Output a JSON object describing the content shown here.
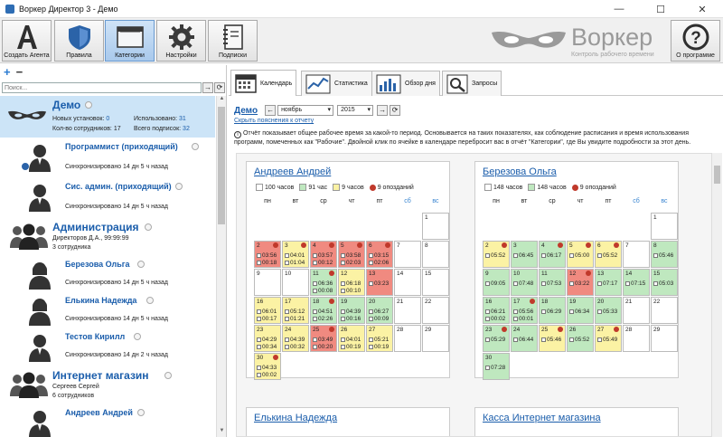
{
  "window": {
    "title": "Воркер Директор 3 - Демо",
    "min": "—",
    "max": "☐",
    "close": "✕"
  },
  "toolbar": {
    "buttons": [
      {
        "label": "Создать Агента",
        "icon": "letter-a-icon"
      },
      {
        "label": "Правила",
        "icon": "shield-icon"
      },
      {
        "label": "Категории",
        "icon": "folder-icon",
        "active": true
      },
      {
        "label": "Настройки",
        "icon": "gear-icon"
      },
      {
        "label": "Подписки",
        "icon": "notebook-icon"
      }
    ],
    "about_label": "О программе",
    "about_icon_glyph": "?"
  },
  "logo": {
    "brand": "Воркер",
    "subtitle": "Контроль рабочего времени"
  },
  "left": {
    "add": "+",
    "remove": "−",
    "search_placeholder": "Поиск...",
    "search_go": "→",
    "search_refresh": "⟳",
    "demo": {
      "name": "Демо",
      "installs_label": "Новых установок:",
      "installs": "0",
      "emp_label": "Кол-во сотрудников:",
      "emp": "17",
      "used_label": "Использовано:",
      "used": "31",
      "subs_label": "Всего подписок:",
      "subs": "32"
    },
    "users1": [
      {
        "name": "Программист (приходящий)",
        "sync": "Синхронизировано 14 дн 5 ч назад"
      },
      {
        "name": "Сис. админ. (приходящий)",
        "sync": "Синхронизировано 14 дн 5 ч назад"
      }
    ],
    "admin": {
      "name": "Администрация",
      "line1": "Директоров Д.А., 99:99:99",
      "line2": "3 сотрудника"
    },
    "users2": [
      {
        "name": "Березова Ольга",
        "sync": "Синхронизировано 14 дн 5 ч назад"
      },
      {
        "name": "Елькина Надежда",
        "sync": "Синхронизировано 14 дн 5 ч назад"
      },
      {
        "name": "Тестов Кирилл",
        "sync": "Синхронизировано 14 дн 2 ч назад"
      }
    ],
    "shop": {
      "name": "Интернет магазин",
      "line1": "Сергеев Сергей",
      "line2": "6 сотрудников"
    },
    "users3": [
      {
        "name": "Андреев Андрей"
      }
    ]
  },
  "tabs": [
    {
      "label": "Календарь",
      "icon": "calendar-icon"
    },
    {
      "label": "Статистика",
      "icon": "line-chart-icon"
    },
    {
      "label": "Обзор дня",
      "icon": "bar-chart-icon"
    },
    {
      "label": "Запросы",
      "icon": "magnifier-icon"
    }
  ],
  "controls": {
    "demo": "Демо",
    "prev": "←",
    "month": "ноябрь",
    "next": "→",
    "year": "2015",
    "refresh": "⟳"
  },
  "explain_link": "Скрыть пояснения к отчету",
  "note": "Отчёт показывает общее рабочее время за какой-то период. Основывается на таких показателях, как соблюдение расписания и время использования программ, помеченных как \"Рабочие\". Двойной клик по ячейке в календаре перебросит вас в отчёт \"Категории\", где Вы увидите подробности за этот день.",
  "note_icon": "info-icon",
  "weekdays": [
    "пн",
    "вт",
    "ср",
    "чт",
    "пт",
    "сб",
    "вс"
  ],
  "colors": {
    "red": "#f08a80",
    "yellow": "#fbf2a4",
    "green": "#bfe8bf",
    "white": "#ffffff",
    "link": "#1a5dab"
  },
  "cards": [
    {
      "name": "Андреев Андрей",
      "legend": [
        {
          "text": "100 часов",
          "color": "#ffffff"
        },
        {
          "text": "91 час",
          "color": "#bfe8bf"
        },
        {
          "text": "9 часов",
          "color": "#fbf2a4"
        },
        {
          "text": "9 опозданий",
          "color": "late"
        }
      ],
      "days": [
        {
          "d": "1",
          "col": 6,
          "row": 0,
          "c": "white"
        },
        {
          "d": "2",
          "col": 0,
          "row": 1,
          "c": "red",
          "late": true,
          "a": "03:56",
          "b": "00:18"
        },
        {
          "d": "3",
          "col": 1,
          "row": 1,
          "c": "yellow",
          "late": true,
          "a": "04:01",
          "b": "01:04"
        },
        {
          "d": "4",
          "col": 2,
          "row": 1,
          "c": "red",
          "late": true,
          "a": "03:57",
          "b": "00:12"
        },
        {
          "d": "5",
          "col": 3,
          "row": 1,
          "c": "red",
          "late": true,
          "a": "03:58",
          "b": "02:03"
        },
        {
          "d": "6",
          "col": 4,
          "row": 1,
          "c": "red",
          "late": true,
          "a": "03:15",
          "b": "02:06"
        },
        {
          "d": "7",
          "col": 5,
          "row": 1,
          "c": "white"
        },
        {
          "d": "8",
          "col": 6,
          "row": 1,
          "c": "white"
        },
        {
          "d": "9",
          "col": 0,
          "row": 2,
          "c": "white"
        },
        {
          "d": "10",
          "col": 1,
          "row": 2,
          "c": "white"
        },
        {
          "d": "11",
          "col": 2,
          "row": 2,
          "c": "green",
          "late": true,
          "a": "06:36",
          "b": "00:08"
        },
        {
          "d": "12",
          "col": 3,
          "row": 2,
          "c": "yellow",
          "a": "06:18",
          "b": "00:10"
        },
        {
          "d": "13",
          "col": 4,
          "row": 2,
          "c": "red",
          "a": "03:23",
          "b": ""
        },
        {
          "d": "14",
          "col": 5,
          "row": 2,
          "c": "white"
        },
        {
          "d": "15",
          "col": 6,
          "row": 2,
          "c": "white"
        },
        {
          "d": "16",
          "col": 0,
          "row": 3,
          "c": "yellow",
          "a": "06:01",
          "b": "00:17"
        },
        {
          "d": "17",
          "col": 1,
          "row": 3,
          "c": "yellow",
          "a": "05:12",
          "b": "01:21"
        },
        {
          "d": "18",
          "col": 2,
          "row": 3,
          "c": "green",
          "late": true,
          "a": "04:51",
          "b": "02:26"
        },
        {
          "d": "19",
          "col": 3,
          "row": 3,
          "c": "green",
          "a": "04:39",
          "b": "00:16"
        },
        {
          "d": "20",
          "col": 4,
          "row": 3,
          "c": "green",
          "a": "06:27",
          "b": "00:09"
        },
        {
          "d": "21",
          "col": 5,
          "row": 3,
          "c": "white"
        },
        {
          "d": "22",
          "col": 6,
          "row": 3,
          "c": "white"
        },
        {
          "d": "23",
          "col": 0,
          "row": 4,
          "c": "yellow",
          "a": "04:29",
          "b": "00:34"
        },
        {
          "d": "24",
          "col": 1,
          "row": 4,
          "c": "yellow",
          "a": "04:39",
          "b": "00:32"
        },
        {
          "d": "25",
          "col": 2,
          "row": 4,
          "c": "red",
          "late": true,
          "a": "03:49",
          "b": "00:20"
        },
        {
          "d": "26",
          "col": 3,
          "row": 4,
          "c": "yellow",
          "a": "04:01",
          "b": "00:19"
        },
        {
          "d": "27",
          "col": 4,
          "row": 4,
          "c": "yellow",
          "a": "05:21",
          "b": "00:19"
        },
        {
          "d": "28",
          "col": 5,
          "row": 4,
          "c": "white"
        },
        {
          "d": "29",
          "col": 6,
          "row": 4,
          "c": "white"
        },
        {
          "d": "30",
          "col": 0,
          "row": 5,
          "c": "yellow",
          "late": true,
          "a": "04:33",
          "b": "00:02"
        }
      ]
    },
    {
      "name": "Березова Ольга",
      "legend": [
        {
          "text": "148 часов",
          "color": "#ffffff"
        },
        {
          "text": "148 часов",
          "color": "#bfe8bf"
        },
        {
          "text": "9 опозданий",
          "color": "late"
        }
      ],
      "days": [
        {
          "d": "1",
          "col": 6,
          "row": 0,
          "c": "white"
        },
        {
          "d": "2",
          "col": 0,
          "row": 1,
          "c": "yellow",
          "late": true,
          "a": "05:52",
          "b": ""
        },
        {
          "d": "3",
          "col": 1,
          "row": 1,
          "c": "green",
          "a": "06:45",
          "b": ""
        },
        {
          "d": "4",
          "col": 2,
          "row": 1,
          "c": "green",
          "late": true,
          "a": "06:17",
          "b": ""
        },
        {
          "d": "5",
          "col": 3,
          "row": 1,
          "c": "yellow",
          "late": true,
          "a": "05:00",
          "b": ""
        },
        {
          "d": "6",
          "col": 4,
          "row": 1,
          "c": "yellow",
          "late": true,
          "a": "05:52",
          "b": ""
        },
        {
          "d": "7",
          "col": 5,
          "row": 1,
          "c": "white"
        },
        {
          "d": "8",
          "col": 6,
          "row": 1,
          "c": "green",
          "a": "05:46",
          "b": ""
        },
        {
          "d": "9",
          "col": 0,
          "row": 2,
          "c": "green",
          "a": "09:05",
          "b": ""
        },
        {
          "d": "10",
          "col": 1,
          "row": 2,
          "c": "green",
          "a": "07:48",
          "b": ""
        },
        {
          "d": "11",
          "col": 2,
          "row": 2,
          "c": "green",
          "a": "07:53",
          "b": ""
        },
        {
          "d": "12",
          "col": 3,
          "row": 2,
          "c": "red",
          "late": true,
          "a": "03:22",
          "b": ""
        },
        {
          "d": "13",
          "col": 4,
          "row": 2,
          "c": "green",
          "a": "07:17",
          "b": ""
        },
        {
          "d": "14",
          "col": 5,
          "row": 2,
          "c": "green",
          "a": "07:15",
          "b": ""
        },
        {
          "d": "15",
          "col": 6,
          "row": 2,
          "c": "green",
          "a": "05:03",
          "b": ""
        },
        {
          "d": "16",
          "col": 0,
          "row": 3,
          "c": "green",
          "a": "06:21",
          "b": "00:02"
        },
        {
          "d": "17",
          "col": 1,
          "row": 3,
          "c": "green",
          "late": true,
          "a": "05:56",
          "b": "00:01"
        },
        {
          "d": "18",
          "col": 2,
          "row": 3,
          "c": "green",
          "a": "06:29",
          "b": ""
        },
        {
          "d": "19",
          "col": 3,
          "row": 3,
          "c": "green",
          "a": "06:34",
          "b": ""
        },
        {
          "d": "20",
          "col": 4,
          "row": 3,
          "c": "green",
          "a": "05:33",
          "b": ""
        },
        {
          "d": "21",
          "col": 5,
          "row": 3,
          "c": "white"
        },
        {
          "d": "22",
          "col": 6,
          "row": 3,
          "c": "white"
        },
        {
          "d": "23",
          "col": 0,
          "row": 4,
          "c": "green",
          "late": true,
          "a": "05:29",
          "b": ""
        },
        {
          "d": "24",
          "col": 1,
          "row": 4,
          "c": "green",
          "a": "06:44",
          "b": ""
        },
        {
          "d": "25",
          "col": 2,
          "row": 4,
          "c": "yellow",
          "late": true,
          "a": "05:46",
          "b": ""
        },
        {
          "d": "26",
          "col": 3,
          "row": 4,
          "c": "green",
          "a": "05:52",
          "b": ""
        },
        {
          "d": "27",
          "col": 4,
          "row": 4,
          "c": "yellow",
          "late": true,
          "a": "05:49",
          "b": ""
        },
        {
          "d": "28",
          "col": 5,
          "row": 4,
          "c": "white"
        },
        {
          "d": "29",
          "col": 6,
          "row": 4,
          "c": "white"
        },
        {
          "d": "30",
          "col": 0,
          "row": 5,
          "c": "green",
          "a": "07:28",
          "b": ""
        }
      ]
    }
  ],
  "bottom_cards": [
    {
      "name": "Елькина Надежда"
    },
    {
      "name": "Касса Интернет магазина"
    }
  ]
}
